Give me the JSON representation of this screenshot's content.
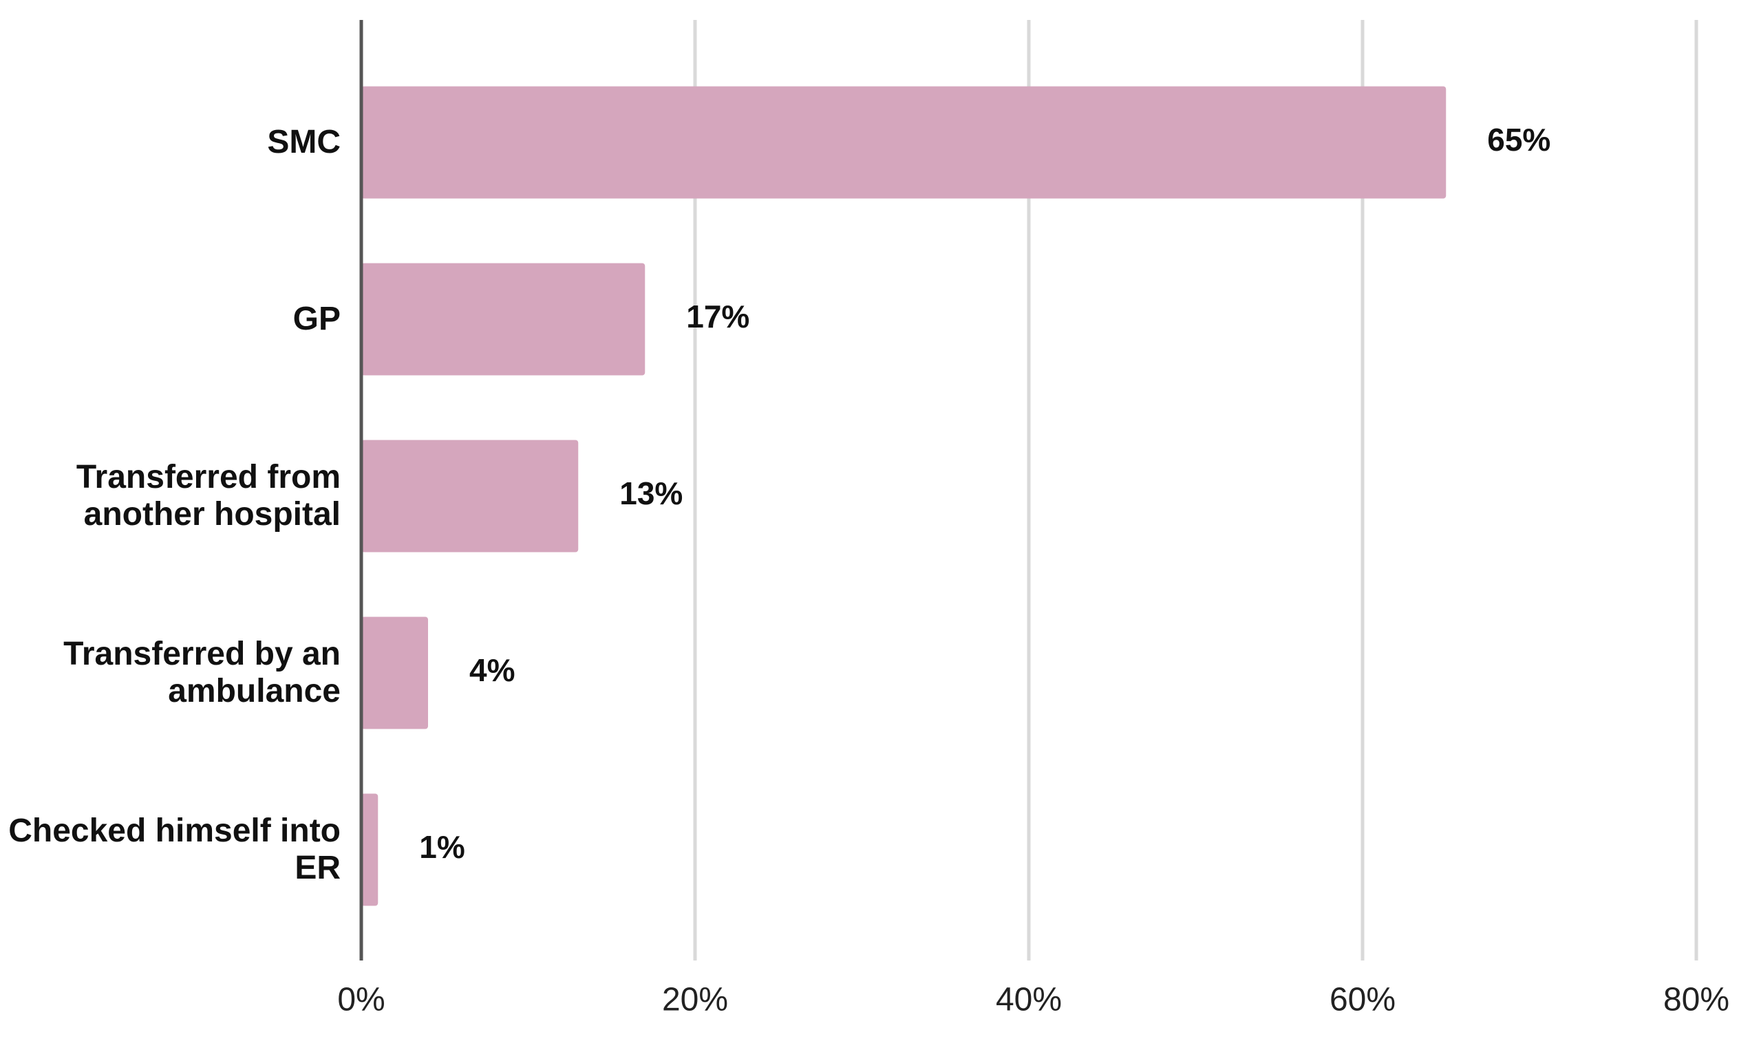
{
  "chart_data": {
    "type": "bar",
    "orientation": "horizontal",
    "categories": [
      "SMC",
      "GP",
      "Transferred from another hospital",
      "Transferred by an ambulance",
      "Checked himself into ER"
    ],
    "values": [
      65,
      17,
      13,
      4,
      1
    ],
    "value_labels": [
      "65%",
      "17%",
      "13%",
      "4%",
      "1%"
    ],
    "color": "#d5a6bd",
    "xlim": [
      0,
      80
    ],
    "xticks": [
      {
        "value": 0,
        "label": "0%"
      },
      {
        "value": 20,
        "label": "20%"
      },
      {
        "value": 40,
        "label": "40%"
      },
      {
        "value": 60,
        "label": "60%"
      },
      {
        "value": 80,
        "label": "80%"
      }
    ],
    "grid": true
  }
}
